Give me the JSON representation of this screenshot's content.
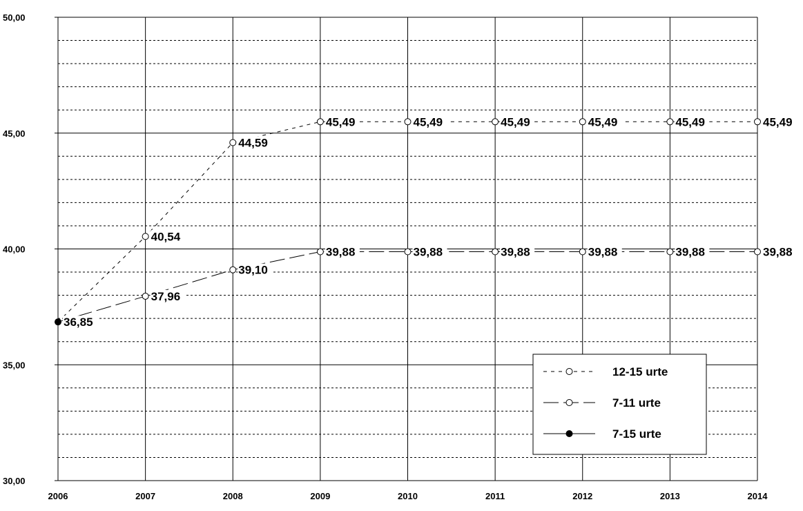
{
  "chart_data": {
    "type": "line",
    "title": "",
    "xlabel": "",
    "ylabel": "",
    "x": [
      "2006",
      "2007",
      "2008",
      "2009",
      "2010",
      "2011",
      "2012",
      "2013",
      "2014"
    ],
    "ylim": [
      30,
      50
    ],
    "y_major_step": 5,
    "y_minor_step": 1,
    "y_tick_labels": [
      "30,00",
      "35,00",
      "40,00",
      "45,00",
      "50,00"
    ],
    "grid": "major solid, minor dashed",
    "legend_position": "bottom-right",
    "series": [
      {
        "name": "12-15 urte",
        "style": "dashed",
        "marker": "open-circle",
        "values": [
          36.85,
          40.54,
          44.59,
          45.49,
          45.49,
          45.49,
          45.49,
          45.49,
          45.49
        ],
        "labels": [
          "",
          "40,54",
          "44,59",
          "45,49",
          "45,49",
          "45,49",
          "45,49",
          "45,49",
          "45,49"
        ]
      },
      {
        "name": "7-11 urte",
        "style": "long-dash",
        "marker": "open-circle",
        "values": [
          36.85,
          37.96,
          39.1,
          39.88,
          39.88,
          39.88,
          39.88,
          39.88,
          39.88
        ],
        "labels": [
          "",
          "37,96",
          "39,10",
          "39,88",
          "39,88",
          "39,88",
          "39,88",
          "39,88",
          "39,88"
        ]
      },
      {
        "name": "7-15 urte",
        "style": "solid",
        "marker": "filled-circle",
        "values": [
          36.85,
          null,
          null,
          null,
          null,
          null,
          null,
          null,
          null
        ],
        "labels": [
          "36,85",
          "",
          "",
          "",
          "",
          "",
          "",
          "",
          ""
        ]
      }
    ]
  }
}
